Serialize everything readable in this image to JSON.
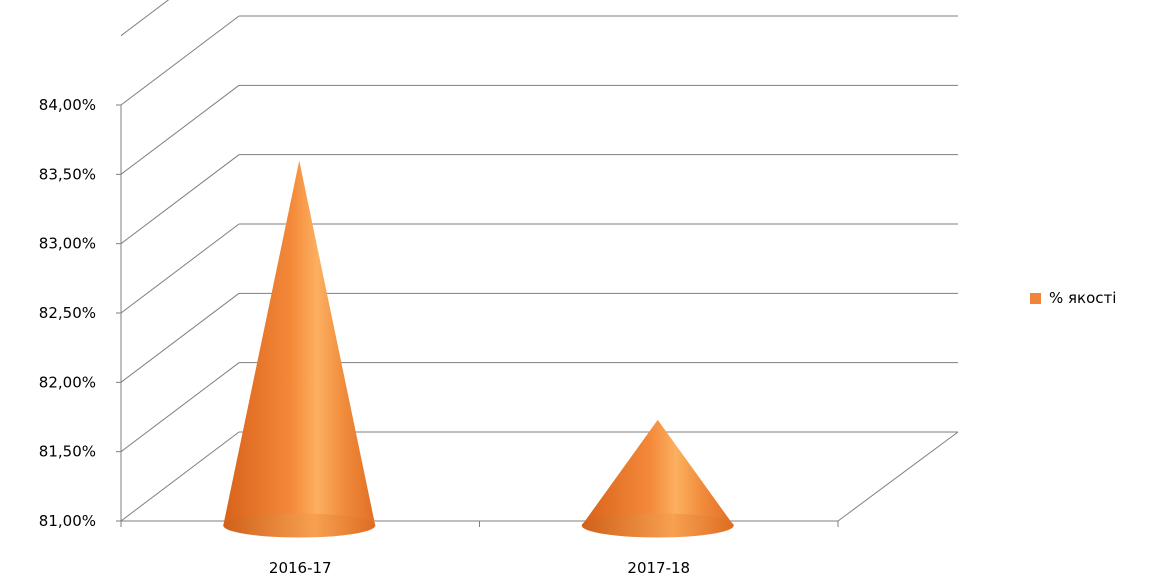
{
  "chart_data": {
    "type": "bar",
    "shape": "cone-3d",
    "categories": [
      "2016-17",
      "2017-18"
    ],
    "series": [
      {
        "name": "% якості",
        "values": [
          0.8392,
          0.8205
        ],
        "color": "#f0843a"
      }
    ],
    "y_ticks": [
      "81,00%",
      "81,50%",
      "82,00%",
      "82,50%",
      "83,00%",
      "83,50%",
      "84,00%"
    ],
    "ylim": [
      0.81,
      0.84
    ],
    "grid": true,
    "legend": {
      "position": "right",
      "label": "% якості"
    }
  }
}
